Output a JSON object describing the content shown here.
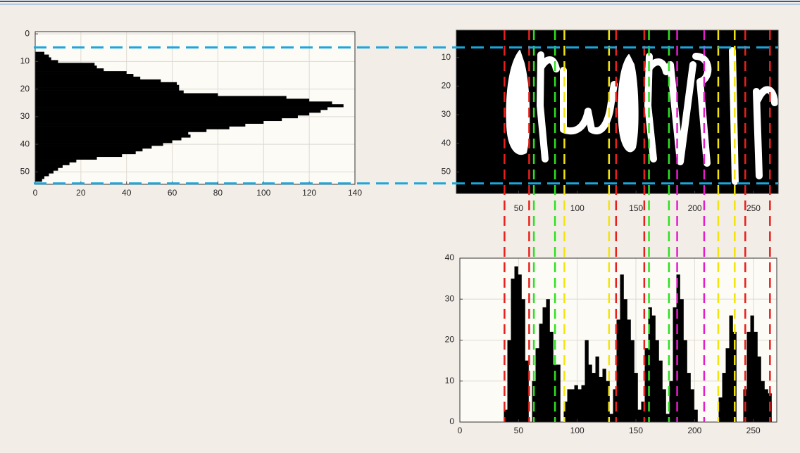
{
  "chart_data": [
    {
      "type": "hbar",
      "color": "#000000",
      "y": [
        7,
        8,
        9,
        10,
        11,
        12,
        13,
        14,
        15,
        16,
        17,
        18,
        19,
        20,
        21,
        22,
        23,
        24,
        25,
        26,
        27,
        28,
        29,
        30,
        31,
        32,
        33,
        34,
        35,
        36,
        37,
        38,
        39,
        40,
        41,
        42,
        43,
        44,
        45,
        46,
        47,
        48,
        49,
        50,
        51,
        52,
        53
      ],
      "values": [
        4,
        6,
        7,
        10,
        26,
        27,
        30,
        40,
        43,
        46,
        55,
        62,
        63,
        63,
        65,
        80,
        110,
        120,
        130,
        135,
        128,
        125,
        120,
        115,
        108,
        100,
        92,
        85,
        75,
        67,
        68,
        64,
        60,
        56,
        51,
        47,
        44,
        38,
        27,
        18,
        15,
        12,
        10,
        8,
        6,
        4,
        3
      ],
      "xlim": [
        0,
        140
      ],
      "ylim": [
        -0.8,
        54.5
      ],
      "y_reversed": true,
      "xticks": [
        0,
        20,
        40,
        60,
        80,
        100,
        120,
        140
      ],
      "yticks": [
        0,
        10,
        20,
        30,
        40,
        50
      ],
      "grid": true
    },
    {
      "type": "image",
      "xlim": [
        -3,
        271
      ],
      "ylim": [
        0.5,
        57.5
      ],
      "y_reversed": true,
      "xticks": [
        50,
        100,
        150,
        200,
        250
      ],
      "yticks": [
        10,
        20,
        30,
        40,
        50
      ],
      "grid": false,
      "vlines": [
        {
          "x": 38,
          "color": "#e8201c"
        },
        {
          "x": 59,
          "color": "#e8201c"
        },
        {
          "x": 63,
          "color": "#2fe021"
        },
        {
          "x": 81,
          "color": "#2fe021"
        },
        {
          "x": 89,
          "color": "#f2e40c"
        },
        {
          "x": 127,
          "color": "#f2e40c"
        },
        {
          "x": 133,
          "color": "#e8201c"
        },
        {
          "x": 157,
          "color": "#e8201c"
        },
        {
          "x": 161,
          "color": "#2fe021"
        },
        {
          "x": 178,
          "color": "#2fe021"
        },
        {
          "x": 185,
          "color": "#e41ccc"
        },
        {
          "x": 208,
          "color": "#e41ccc"
        },
        {
          "x": 220,
          "color": "#f2e40c"
        },
        {
          "x": 234,
          "color": "#f2e40c"
        },
        {
          "x": 243,
          "color": "#e8201c"
        },
        {
          "x": 264,
          "color": "#e8201c"
        }
      ],
      "hlines": [
        {
          "y": 6.5,
          "color": "#1ba6dc"
        },
        {
          "y": 54,
          "color": "#1ba6dc"
        }
      ]
    },
    {
      "type": "bar",
      "color": "#000000",
      "x": [
        39,
        42,
        45,
        48,
        51,
        54,
        57,
        60,
        63,
        66,
        69,
        72,
        75,
        78,
        81,
        84,
        87,
        90,
        93,
        96,
        99,
        102,
        105,
        108,
        111,
        114,
        117,
        120,
        123,
        126,
        129,
        132,
        135,
        138,
        141,
        144,
        147,
        150,
        153,
        156,
        159,
        162,
        165,
        168,
        171,
        174,
        177,
        180,
        183,
        186,
        189,
        192,
        195,
        198,
        201,
        204,
        207,
        210,
        213,
        216,
        219,
        222,
        225,
        228,
        231,
        234,
        237,
        240,
        243,
        246,
        249,
        252,
        255,
        258,
        261,
        264
      ],
      "values": [
        3,
        20,
        35,
        38,
        36,
        30,
        15,
        0,
        10,
        18,
        24,
        28,
        30,
        22,
        14,
        14,
        0,
        5,
        8,
        8,
        9,
        8,
        9,
        20,
        14,
        12,
        16,
        11,
        13,
        10,
        2,
        8,
        25,
        36,
        30,
        25,
        20,
        12,
        3,
        5,
        18,
        28,
        26,
        20,
        15,
        8,
        2,
        10,
        28,
        36,
        30,
        20,
        12,
        8,
        3,
        0,
        0,
        0,
        0,
        0,
        0,
        6,
        12,
        18,
        26,
        22,
        0,
        0,
        8,
        22,
        26,
        22,
        16,
        10,
        8,
        7
      ],
      "xlim": [
        0,
        270
      ],
      "ylim": [
        0,
        40
      ],
      "xticks": [
        0,
        50,
        100,
        150,
        200,
        250
      ],
      "yticks": [
        0,
        10,
        20,
        30,
        40
      ],
      "grid": true
    }
  ]
}
